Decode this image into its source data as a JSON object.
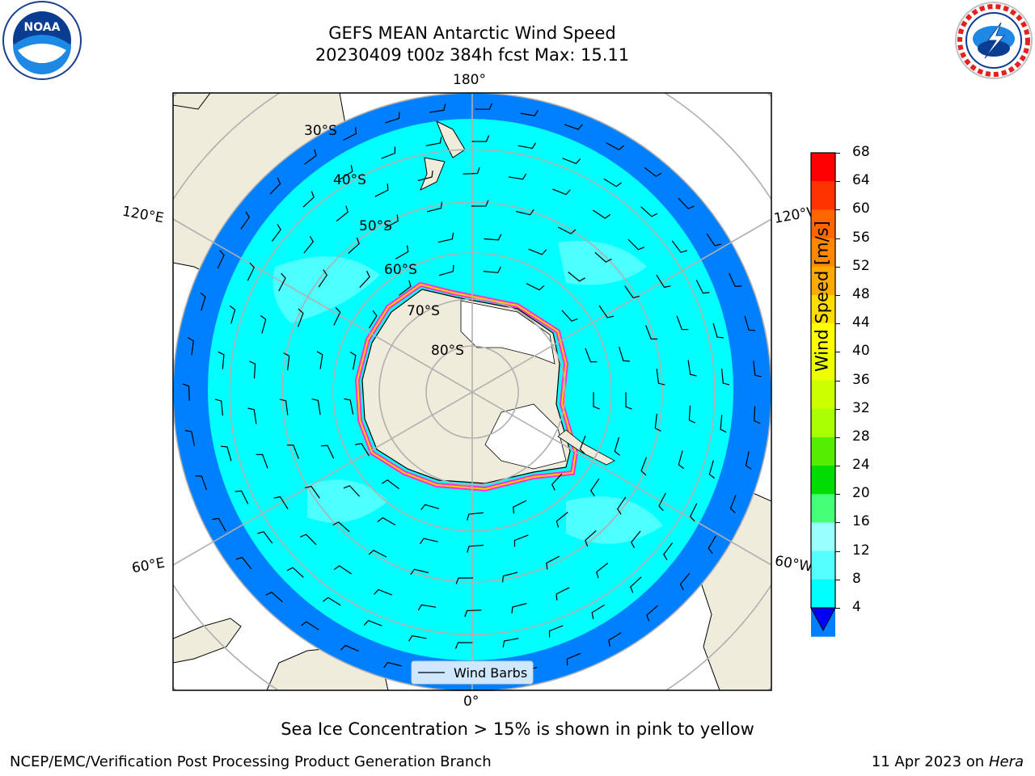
{
  "title": {
    "line1": "GEFS MEAN Antarctic Wind Speed",
    "line2": "20230409 t00z 384h fcst   Max: 15.11"
  },
  "map": {
    "projection": "south-polar-stereographic",
    "longitude_labels": {
      "top": "180°",
      "bottom": "0°",
      "upper_left": "120°E",
      "upper_right": "120°W",
      "lower_left": "60°E",
      "lower_right": "60°W"
    },
    "latitude_labels": [
      "30°S",
      "40°S",
      "50°S",
      "60°S",
      "70°S",
      "80°S"
    ],
    "legend_label": "Wind Barbs",
    "colors": {
      "land": "#efecdc",
      "ice": "#ffffff",
      "ocean_low": "#0080ff",
      "ocean_mid": "#00ffff",
      "ocean_high": "#4dffff",
      "sea_ice_edge": [
        "#ff33cc",
        "#ffcc00"
      ]
    }
  },
  "colorbar": {
    "title": "Wind Speed [m/s]",
    "ticks": [
      "68",
      "64",
      "60",
      "56",
      "52",
      "48",
      "44",
      "40",
      "36",
      "32",
      "28",
      "24",
      "20",
      "16",
      "12",
      "8",
      "4"
    ],
    "colors": [
      "#ff0000",
      "#ff3300",
      "#ff6600",
      "#ff8800",
      "#ffaa00",
      "#ffdd00",
      "#ffff00",
      "#eeff00",
      "#ccff00",
      "#aaff00",
      "#55ee00",
      "#00dd00",
      "#44ff77",
      "#99ffff",
      "#55ffff",
      "#00ffff",
      "#0080ff"
    ],
    "extend_color": "#0000ff"
  },
  "caption": "Sea Ice Concentration > 15% is shown in pink to yellow",
  "footer": {
    "left": "NCEP/EMC/Verification Post Processing Product Generation Branch",
    "right_date": "11 Apr 2023 on ",
    "right_host": "Hera"
  },
  "logos": {
    "left": "NOAA",
    "right": "NATIONAL WEATHER SERVICE"
  }
}
